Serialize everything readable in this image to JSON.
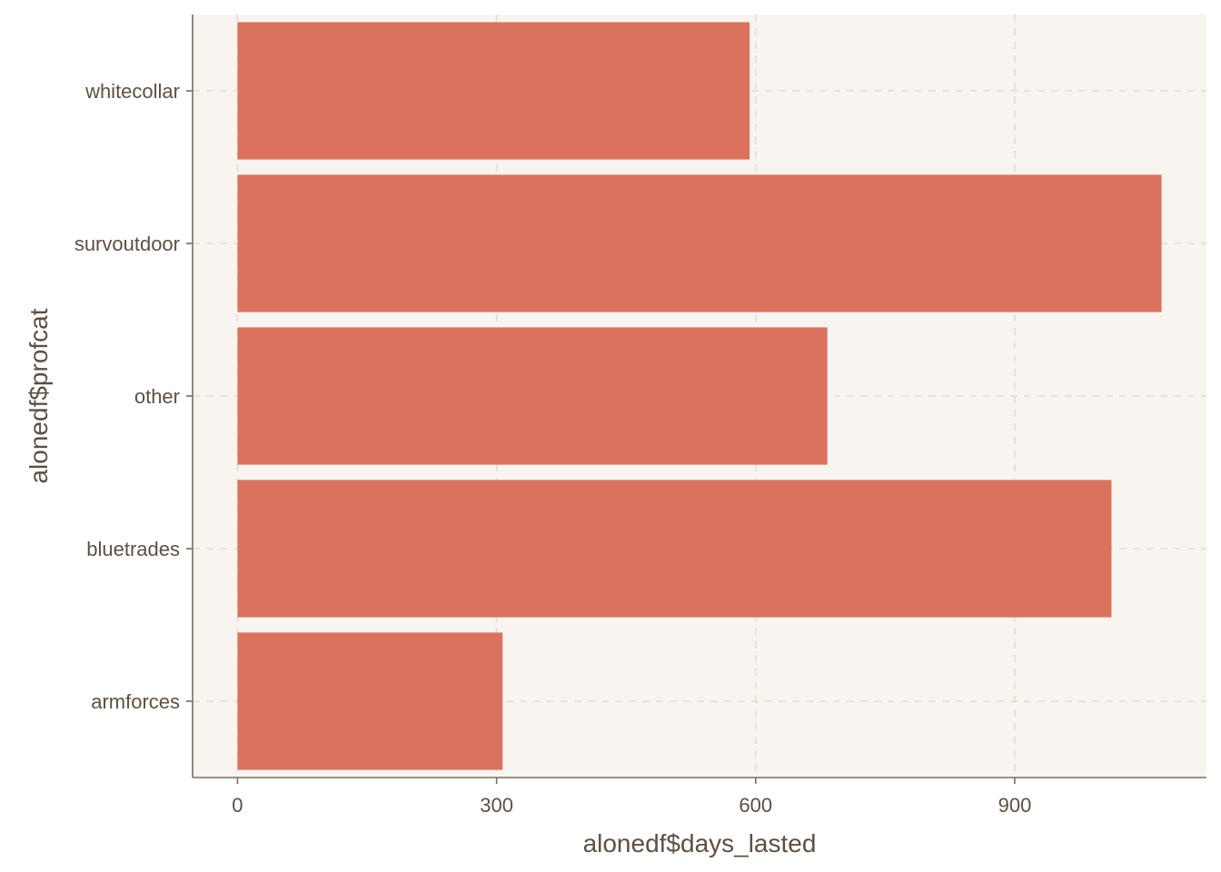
{
  "chart_data": {
    "type": "bar",
    "orientation": "horizontal",
    "categories": [
      "armforces",
      "bluetrades",
      "other",
      "survoutdoor",
      "whitecollar"
    ],
    "values": [
      307,
      1012,
      683,
      1070,
      593
    ],
    "xlabel": "alonedf$days_lasted",
    "ylabel": "alonedf$profcat",
    "xlim": [
      -52,
      1122
    ],
    "xticks": [
      0,
      300,
      600,
      900
    ],
    "xtick_labels": [
      "0",
      "300",
      "600",
      "900"
    ],
    "grid": true,
    "grid_style": "dashed"
  },
  "colors": {
    "bar": "#DB725E",
    "panel_background": "#F8F5F1",
    "axis_line": "#7A6C5C",
    "grid_line": "#E4DCCF",
    "text": "#5E5042"
  }
}
